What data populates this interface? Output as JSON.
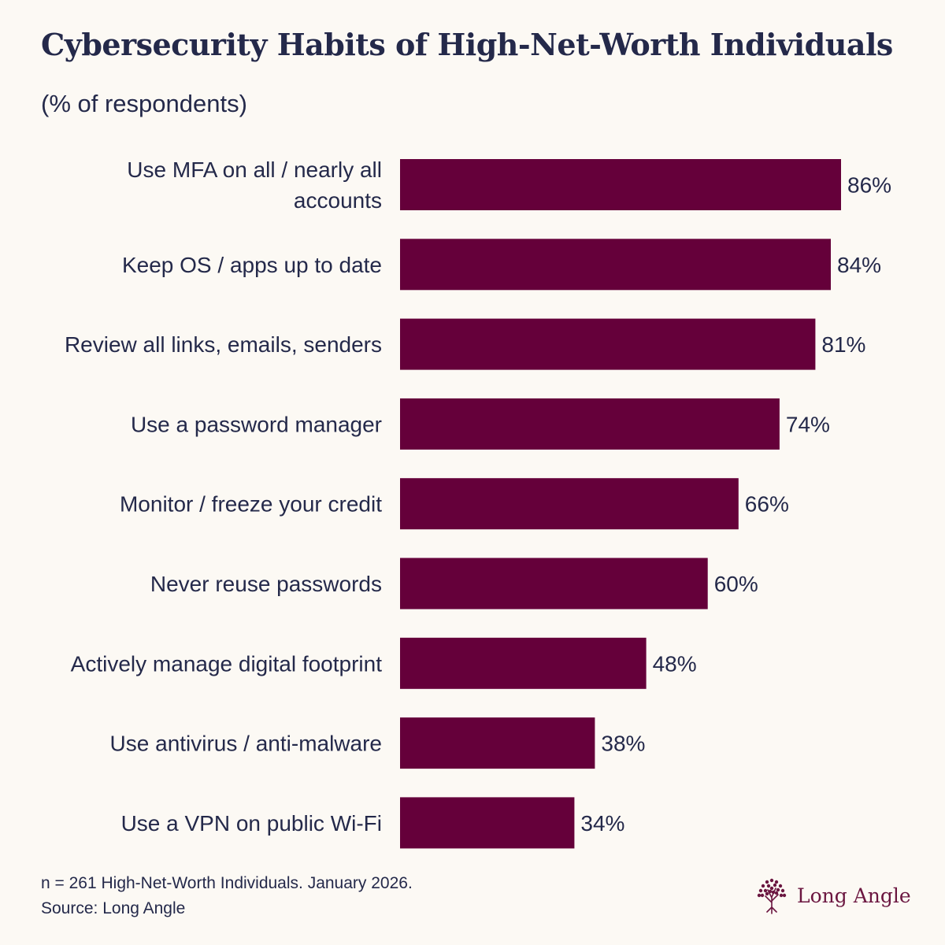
{
  "colors": {
    "background": "#FCF9F4",
    "bar": "#65003A",
    "text": "#24294A",
    "brand": "#6B1640"
  },
  "chart_data": {
    "type": "bar",
    "orientation": "horizontal",
    "title": "Cybersecurity Habits of High-Net-Worth Individuals",
    "subtitle": "(% of respondents)",
    "xlim": [
      0,
      100
    ],
    "grid": false,
    "unit_suffix": "%",
    "categories": [
      [
        "Use MFA on all / nearly all",
        "accounts"
      ],
      [
        "Keep OS / apps up to date"
      ],
      [
        "Review all links, emails, senders"
      ],
      [
        "Use a password manager"
      ],
      [
        "Monitor / freeze your credit"
      ],
      [
        "Never reuse passwords"
      ],
      [
        "Actively manage digital footprint"
      ],
      [
        "Use antivirus / anti-malware"
      ],
      [
        "Use a VPN on public Wi-Fi"
      ]
    ],
    "values": [
      86,
      84,
      81,
      74,
      66,
      60,
      48,
      38,
      34
    ],
    "value_labels": [
      "86%",
      "84%",
      "81%",
      "74%",
      "66%",
      "60%",
      "48%",
      "38%",
      "34%"
    ]
  },
  "footnote": {
    "line1": "n = 261 High-Net-Worth Individuals. January 2026.",
    "line2": "Source: Long Angle"
  },
  "brand": {
    "icon": "tree-icon",
    "name": "Long Angle"
  }
}
